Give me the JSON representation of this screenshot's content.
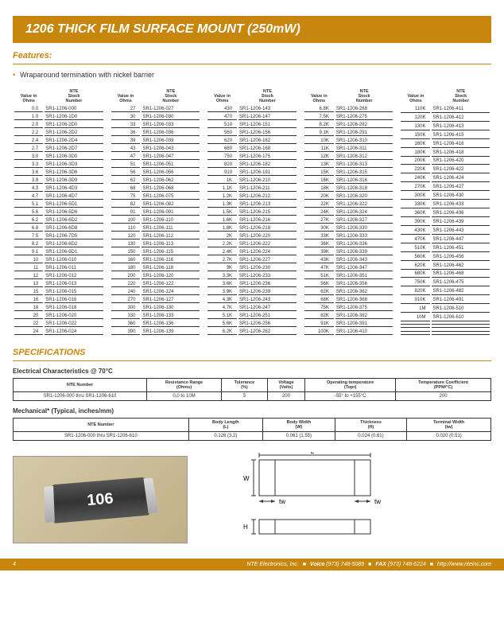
{
  "header": {
    "title": "1206 THICK FILM SURFACE MOUNT (250mW)"
  },
  "features": {
    "heading": "Features:",
    "items": [
      "Wraparound termination with nickel barrier"
    ]
  },
  "column_headers": {
    "ohms": "Value in\nOhms",
    "stock": "NTE\nStock\nNumber"
  },
  "columns": [
    [
      [
        "0.0",
        "SR1-1206-000"
      ],
      [
        "1.0",
        "SR1-1206-1D0"
      ],
      [
        "2.0",
        "SR1-1206-2D0"
      ],
      [
        "2.2",
        "SR1-1206-2D2"
      ],
      [
        "2.4",
        "SR1-1206-2D4"
      ],
      [
        "2.7",
        "SR1-1206-2D7"
      ],
      [
        "3.0",
        "SR1-1206-3D0"
      ],
      [
        "3.3",
        "SR1-1206-3D3"
      ],
      [
        "3.6",
        "SR1-1206-3D6"
      ],
      [
        "3.9",
        "SR1-1206-3D9"
      ],
      [
        "4.3",
        "SR1-1206-4D3"
      ],
      [
        "4.7",
        "SR1-1206-4D7"
      ],
      [
        "5.1",
        "SR1-1206-5D1"
      ],
      [
        "5.6",
        "SR1-1206-5D6"
      ],
      [
        "6.2",
        "SR1-1206-6D2"
      ],
      [
        "6.8",
        "SR1-1206-6D8"
      ],
      [
        "7.5",
        "SR1-1206-7D5"
      ],
      [
        "8.2",
        "SR1-1206-8D2"
      ],
      [
        "9.1",
        "SR1-1206-9D1"
      ],
      [
        "10",
        "SR1-1206-010"
      ],
      [
        "11",
        "SR1-1206-011"
      ],
      [
        "12",
        "SR1-1206-012"
      ],
      [
        "13",
        "SR1-1206-013"
      ],
      [
        "15",
        "SR1-1206-015"
      ],
      [
        "16",
        "SR1-1206-016"
      ],
      [
        "18",
        "SR1-1206-018"
      ],
      [
        "20",
        "SR1-1206-020"
      ],
      [
        "22",
        "SR1-1206-022"
      ],
      [
        "24",
        "SR1-1206-024"
      ]
    ],
    [
      [
        "27",
        "SR1-1206-027"
      ],
      [
        "30",
        "SR1-1206-030"
      ],
      [
        "33",
        "SR1-1206-033"
      ],
      [
        "36",
        "SR1-1206-036"
      ],
      [
        "39",
        "SR1-1206-039"
      ],
      [
        "43",
        "SR1-1206-043"
      ],
      [
        "47",
        "SR1-1206-047"
      ],
      [
        "51",
        "SR1-1206-051"
      ],
      [
        "56",
        "SR1-1206-056"
      ],
      [
        "62",
        "SR1-1206-062"
      ],
      [
        "68",
        "SR1-1206-068"
      ],
      [
        "75",
        "SR1-1206-075"
      ],
      [
        "82",
        "SR1-1206-082"
      ],
      [
        "91",
        "SR1-1206-091"
      ],
      [
        "100",
        "SR1-1206-110"
      ],
      [
        "110",
        "SR1-1206-111"
      ],
      [
        "120",
        "SR1-1206-112"
      ],
      [
        "130",
        "SR1-1206-113"
      ],
      [
        "150",
        "SR1-1206-115"
      ],
      [
        "160",
        "SR1-1206-116"
      ],
      [
        "180",
        "SR1-1206-118"
      ],
      [
        "200",
        "SR1-1206-120"
      ],
      [
        "220",
        "SR1-1206-122"
      ],
      [
        "240",
        "SR1-1206-124"
      ],
      [
        "270",
        "SR1-1206-127"
      ],
      [
        "300",
        "SR1-1206-130"
      ],
      [
        "330",
        "SR1-1206-133"
      ],
      [
        "360",
        "SR1-1206-136"
      ],
      [
        "390",
        "SR1-1206-139"
      ]
    ],
    [
      [
        "430",
        "SR1-1206-143"
      ],
      [
        "470",
        "SR1-1206-147"
      ],
      [
        "510",
        "SR1-1206-151"
      ],
      [
        "560",
        "SR1-1206-156"
      ],
      [
        "620",
        "SR1-1206-162"
      ],
      [
        "680",
        "SR1-1206-168"
      ],
      [
        "750",
        "SR1-1206-175"
      ],
      [
        "820",
        "SR1-1206-182"
      ],
      [
        "910",
        "SR1-1206-191"
      ],
      [
        "1K",
        "SR1-1206-210"
      ],
      [
        "1.1K",
        "SR1-1206-211"
      ],
      [
        "1.2K",
        "SR1-1206-212"
      ],
      [
        "1.3K",
        "SR1-1206-213"
      ],
      [
        "1.5K",
        "SR1-1206-215"
      ],
      [
        "1.6K",
        "SR1-1206-216"
      ],
      [
        "1.8K",
        "SR1-1206-218"
      ],
      [
        "2K",
        "SR1-1206-220"
      ],
      [
        "2.2K",
        "SR1-1206-222"
      ],
      [
        "2.4K",
        "SR1-1206-224"
      ],
      [
        "2.7K",
        "SR1-1206-227"
      ],
      [
        "3K",
        "SR1-1206-230"
      ],
      [
        "3.3K",
        "SR1-1206-233"
      ],
      [
        "3.6K",
        "SR1-1206-236"
      ],
      [
        "3.9K",
        "SR1-1206-239"
      ],
      [
        "4.3K",
        "SR1-1206-243"
      ],
      [
        "4.7K",
        "SR1-1206-247"
      ],
      [
        "5.1K",
        "SR1-1206-251"
      ],
      [
        "5.6K",
        "SR1-1206-256"
      ],
      [
        "6.2K",
        "SR1-1206-262"
      ]
    ],
    [
      [
        "6.8K",
        "SR1-1206-268"
      ],
      [
        "7.5K",
        "SR1-1206-275"
      ],
      [
        "8.2K",
        "SR1-1206-282"
      ],
      [
        "9.1K",
        "SR1-1206-291"
      ],
      [
        "10K",
        "SR1-1206-310"
      ],
      [
        "11K",
        "SR1-1206-311"
      ],
      [
        "12K",
        "SR1-1206-312"
      ],
      [
        "13K",
        "SR1-1206-313"
      ],
      [
        "15K",
        "SR1-1206-315"
      ],
      [
        "16K",
        "SR1-1206-316"
      ],
      [
        "18K",
        "SR1-1206-318"
      ],
      [
        "20K",
        "SR1-1206-320"
      ],
      [
        "22K",
        "SR1-1206-322"
      ],
      [
        "24K",
        "SR1-1206-324"
      ],
      [
        "27K",
        "SR1-1206-327"
      ],
      [
        "30K",
        "SR1-1206-330"
      ],
      [
        "33K",
        "SR1-1206-333"
      ],
      [
        "36K",
        "SR1-1206-336"
      ],
      [
        "39K",
        "SR1-1206-339"
      ],
      [
        "43K",
        "SR1-1206-343"
      ],
      [
        "47K",
        "SR1-1206-347"
      ],
      [
        "51K",
        "SR1-1206-351"
      ],
      [
        "56K",
        "SR1-1206-356"
      ],
      [
        "62K",
        "SR1-1206-362"
      ],
      [
        "68K",
        "SR1-1206-368"
      ],
      [
        "75K",
        "SR1-1206-375"
      ],
      [
        "82K",
        "SR1-1206-382"
      ],
      [
        "91K",
        "SR1-1206-391"
      ],
      [
        "100K",
        "SR1-1206-410"
      ]
    ],
    [
      [
        "110K",
        "SR1-1206-411"
      ],
      [
        "120K",
        "SR1-1206-412"
      ],
      [
        "130K",
        "SR1-1206-413"
      ],
      [
        "150K",
        "SR1-1206-415"
      ],
      [
        "160K",
        "SR1-1206-416"
      ],
      [
        "180K",
        "SR1-1206-418"
      ],
      [
        "200K",
        "SR1-1206-420"
      ],
      [
        "220K",
        "SR1-1206-422"
      ],
      [
        "240K",
        "SR1-1206-424"
      ],
      [
        "270K",
        "SR1-1206-427"
      ],
      [
        "300K",
        "SR1-1206-430"
      ],
      [
        "330K",
        "SR1-1206-433"
      ],
      [
        "360K",
        "SR1-1206-436"
      ],
      [
        "390K",
        "SR1-1206-439"
      ],
      [
        "430K",
        "SR1-1206-443"
      ],
      [
        "470K",
        "SR1-1206-447"
      ],
      [
        "510K",
        "SR1-1206-451"
      ],
      [
        "560K",
        "SR1-1206-456"
      ],
      [
        "620K",
        "SR1-1206-462"
      ],
      [
        "680K",
        "SR1-1206-468"
      ],
      [
        "750K",
        "SR1-1206-475"
      ],
      [
        "820K",
        "SR1-1206-482"
      ],
      [
        "910K",
        "SR1-1206-491"
      ],
      [
        "1M",
        "SR1-1206-510"
      ],
      [
        "10M",
        "SR1-1206-610"
      ],
      [
        "",
        ""
      ],
      [
        "",
        ""
      ],
      [
        "",
        ""
      ],
      [
        "",
        ""
      ]
    ]
  ],
  "specs": {
    "heading": "SPECIFICATIONS",
    "electrical_label": "Electrical Characteristics @ 70°C",
    "electrical": {
      "headers": [
        "NTE Number",
        "Resistance Range\n(Ohms)",
        "Tolerance\n(%)",
        "Voltage\n(Volts)",
        "Operating temperature\n(Topr)",
        "Temperature Coefficient\n(PPM/°C)"
      ],
      "row": [
        "SR1-1206-000 thru SR1-1206-610",
        "0.0 to 10M",
        "5",
        "200",
        "-55° to +155°C",
        "200"
      ]
    },
    "mechanical_label": "Mechanical* (Typical, inches/mm)",
    "mechanical": {
      "headers": [
        "NTE Number",
        "Body Length\n(L)",
        "Body Width\n(W)",
        "Thickness\n(H)",
        "Terminal Width\n(tw)"
      ],
      "row": [
        "SR1-1206-000 thru SR1-1206-610",
        "0.126 (3.2)",
        "0.061 (1.55)",
        "0.024 (0.61)",
        "0.020 (0.51)"
      ]
    }
  },
  "chip_label": "106",
  "diagram_labels": {
    "L": "L",
    "W": "W",
    "H": "H",
    "tw": "tw"
  },
  "footer": {
    "page": "4",
    "company": "NTE Electronics, Inc.",
    "voice_label": "Voice",
    "voice": "(973) 748-5089",
    "fax_label": "FAX",
    "fax": "(973) 748-6224",
    "url": "http://www.nteinc.com"
  },
  "colors": {
    "accent": "#c8860d"
  }
}
